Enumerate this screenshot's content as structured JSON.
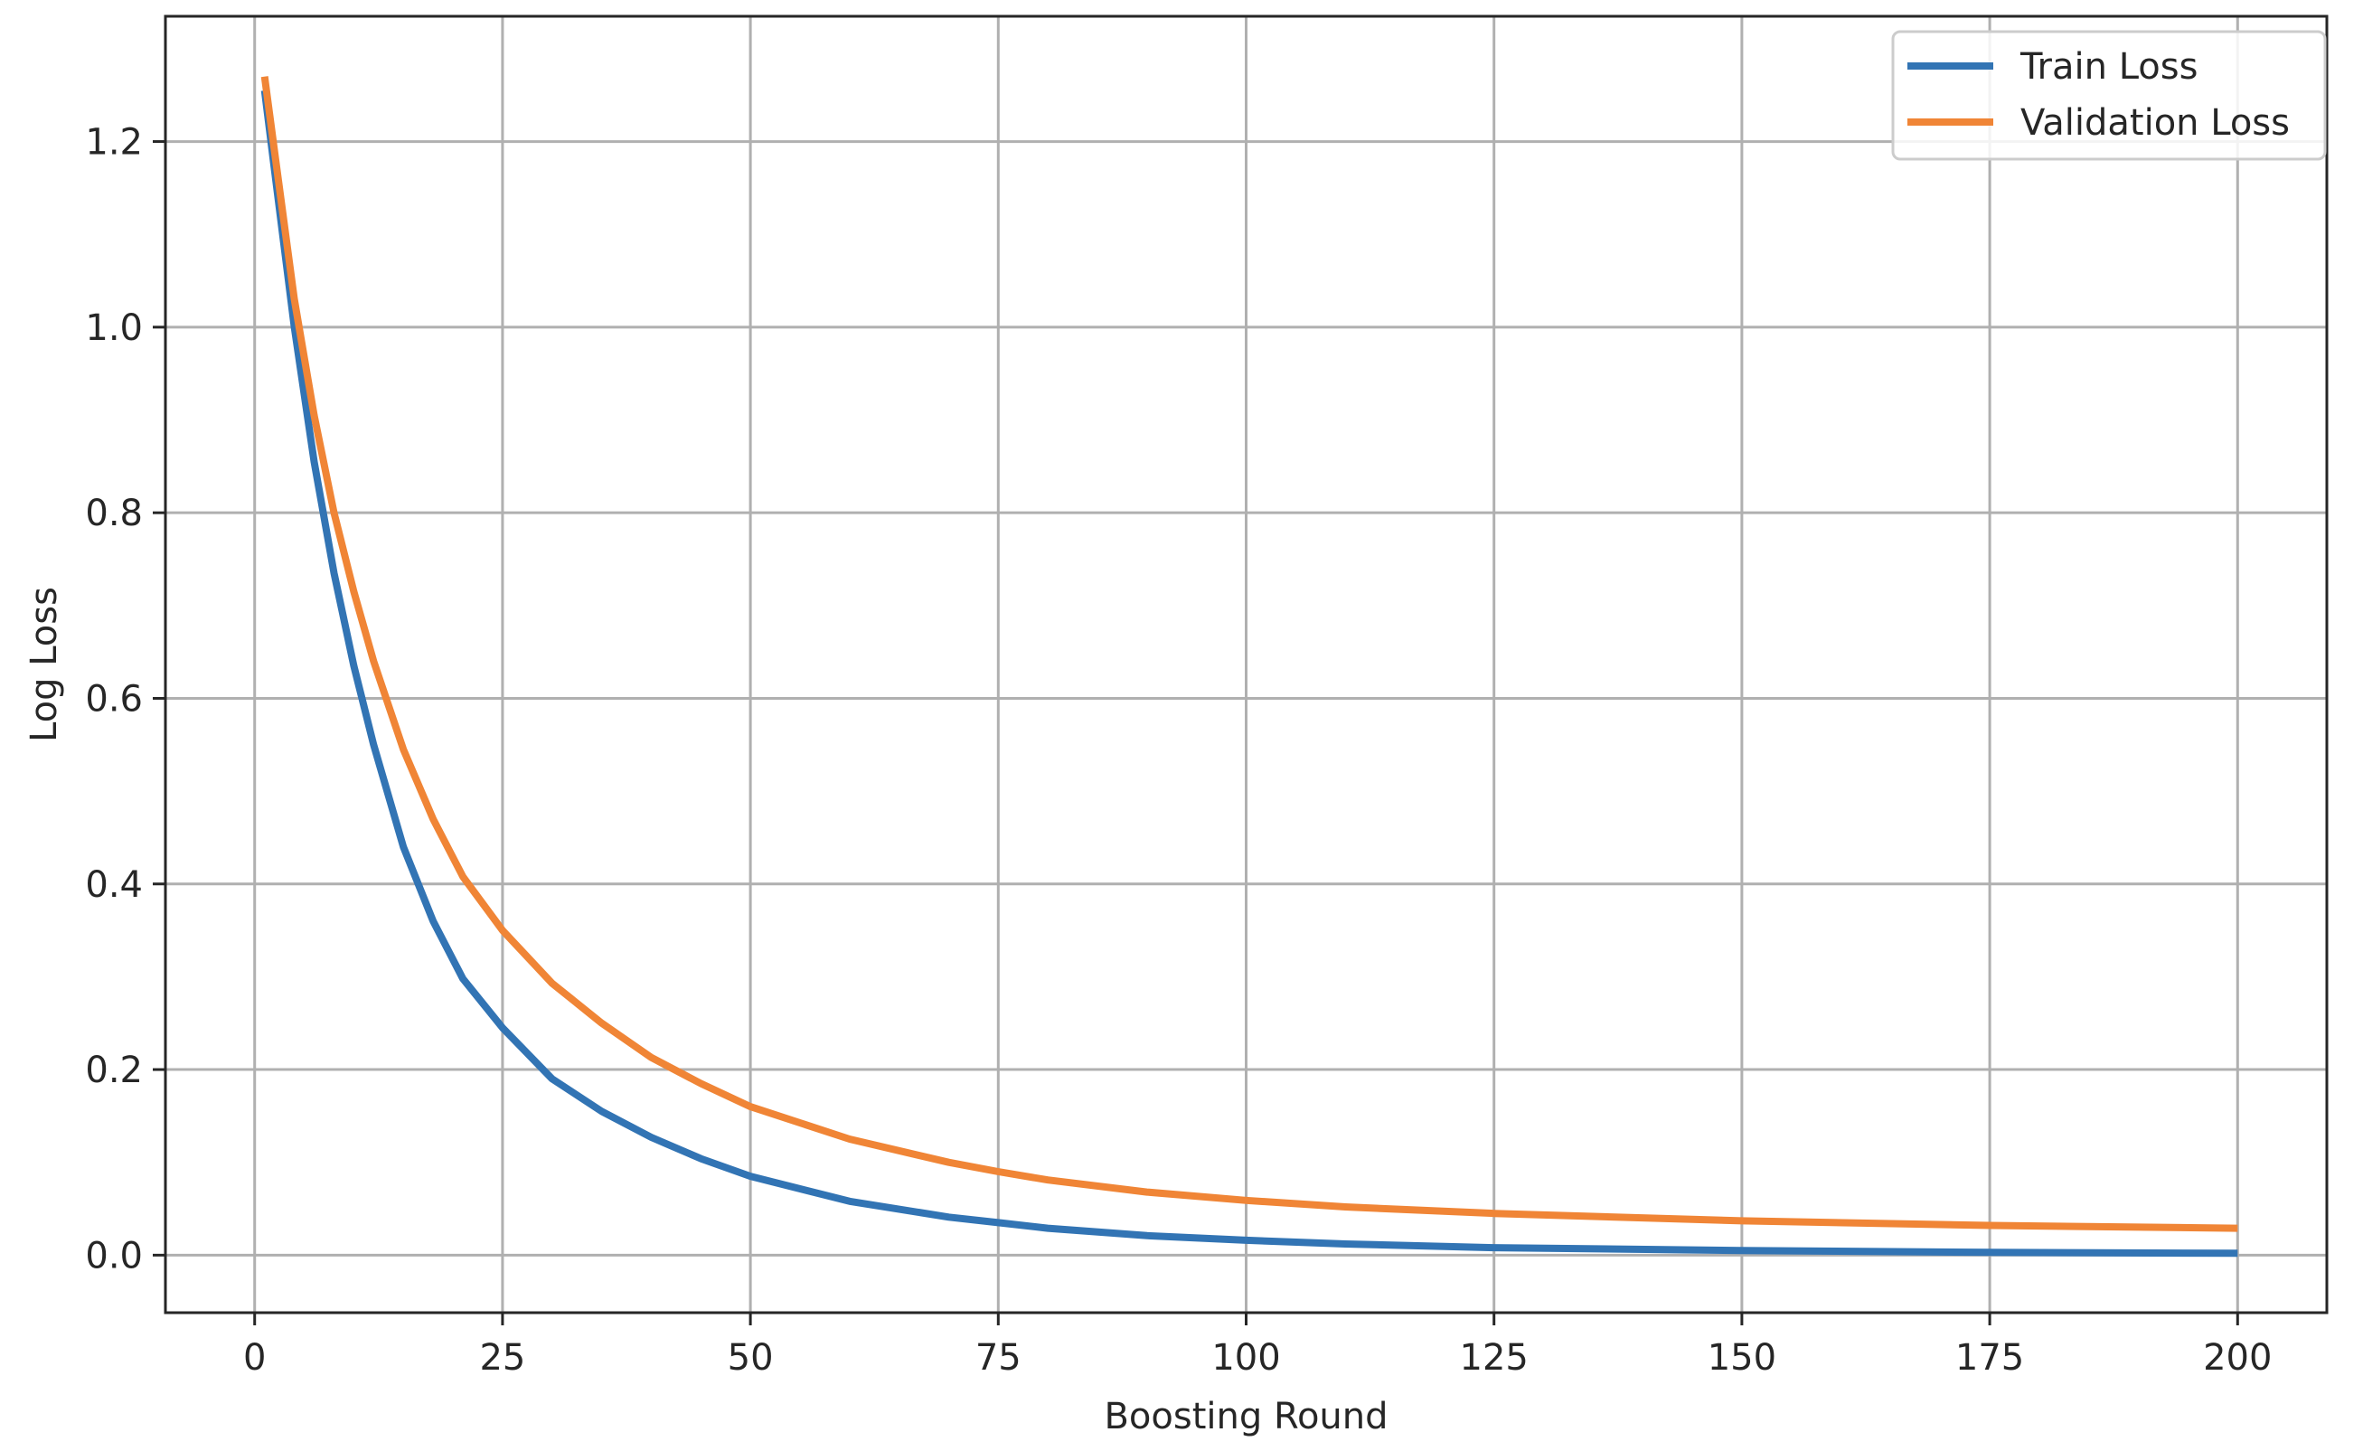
{
  "chart_data": {
    "type": "line",
    "title": "",
    "xlabel": "Boosting Round",
    "ylabel": "Log Loss",
    "xlim": [
      -9,
      209
    ],
    "ylim": [
      -0.062,
      1.335
    ],
    "xticks": [
      0,
      25,
      50,
      75,
      100,
      125,
      150,
      175,
      200
    ],
    "xtick_labels": [
      "0",
      "25",
      "50",
      "75",
      "100",
      "125",
      "150",
      "175",
      "200"
    ],
    "yticks": [
      0.0,
      0.2,
      0.4,
      0.6,
      0.8,
      1.0,
      1.2
    ],
    "ytick_labels": [
      "0.0",
      "0.2",
      "0.4",
      "0.6",
      "0.8",
      "1.0",
      "1.2"
    ],
    "grid": true,
    "legend_position": "top-right",
    "x": [
      1,
      2,
      4,
      6,
      8,
      10,
      12,
      15,
      18,
      21,
      25,
      30,
      35,
      40,
      45,
      50,
      60,
      70,
      75,
      80,
      90,
      100,
      110,
      125,
      150,
      175,
      200
    ],
    "series": [
      {
        "name": "Train Loss",
        "color": "#3274b4",
        "values": [
          1.255,
          1.17,
          1.0,
          0.855,
          0.735,
          0.635,
          0.55,
          0.44,
          0.36,
          0.298,
          0.245,
          0.19,
          0.155,
          0.127,
          0.104,
          0.085,
          0.058,
          0.041,
          0.035,
          0.029,
          0.021,
          0.016,
          0.012,
          0.008,
          0.005,
          0.003,
          0.002
        ]
      },
      {
        "name": "Validation Loss",
        "color": "#f08536",
        "values": [
          1.27,
          1.19,
          1.03,
          0.905,
          0.8,
          0.715,
          0.64,
          0.545,
          0.47,
          0.408,
          0.35,
          0.293,
          0.25,
          0.213,
          0.185,
          0.16,
          0.125,
          0.1,
          0.09,
          0.081,
          0.068,
          0.059,
          0.052,
          0.045,
          0.037,
          0.032,
          0.029
        ]
      }
    ]
  }
}
